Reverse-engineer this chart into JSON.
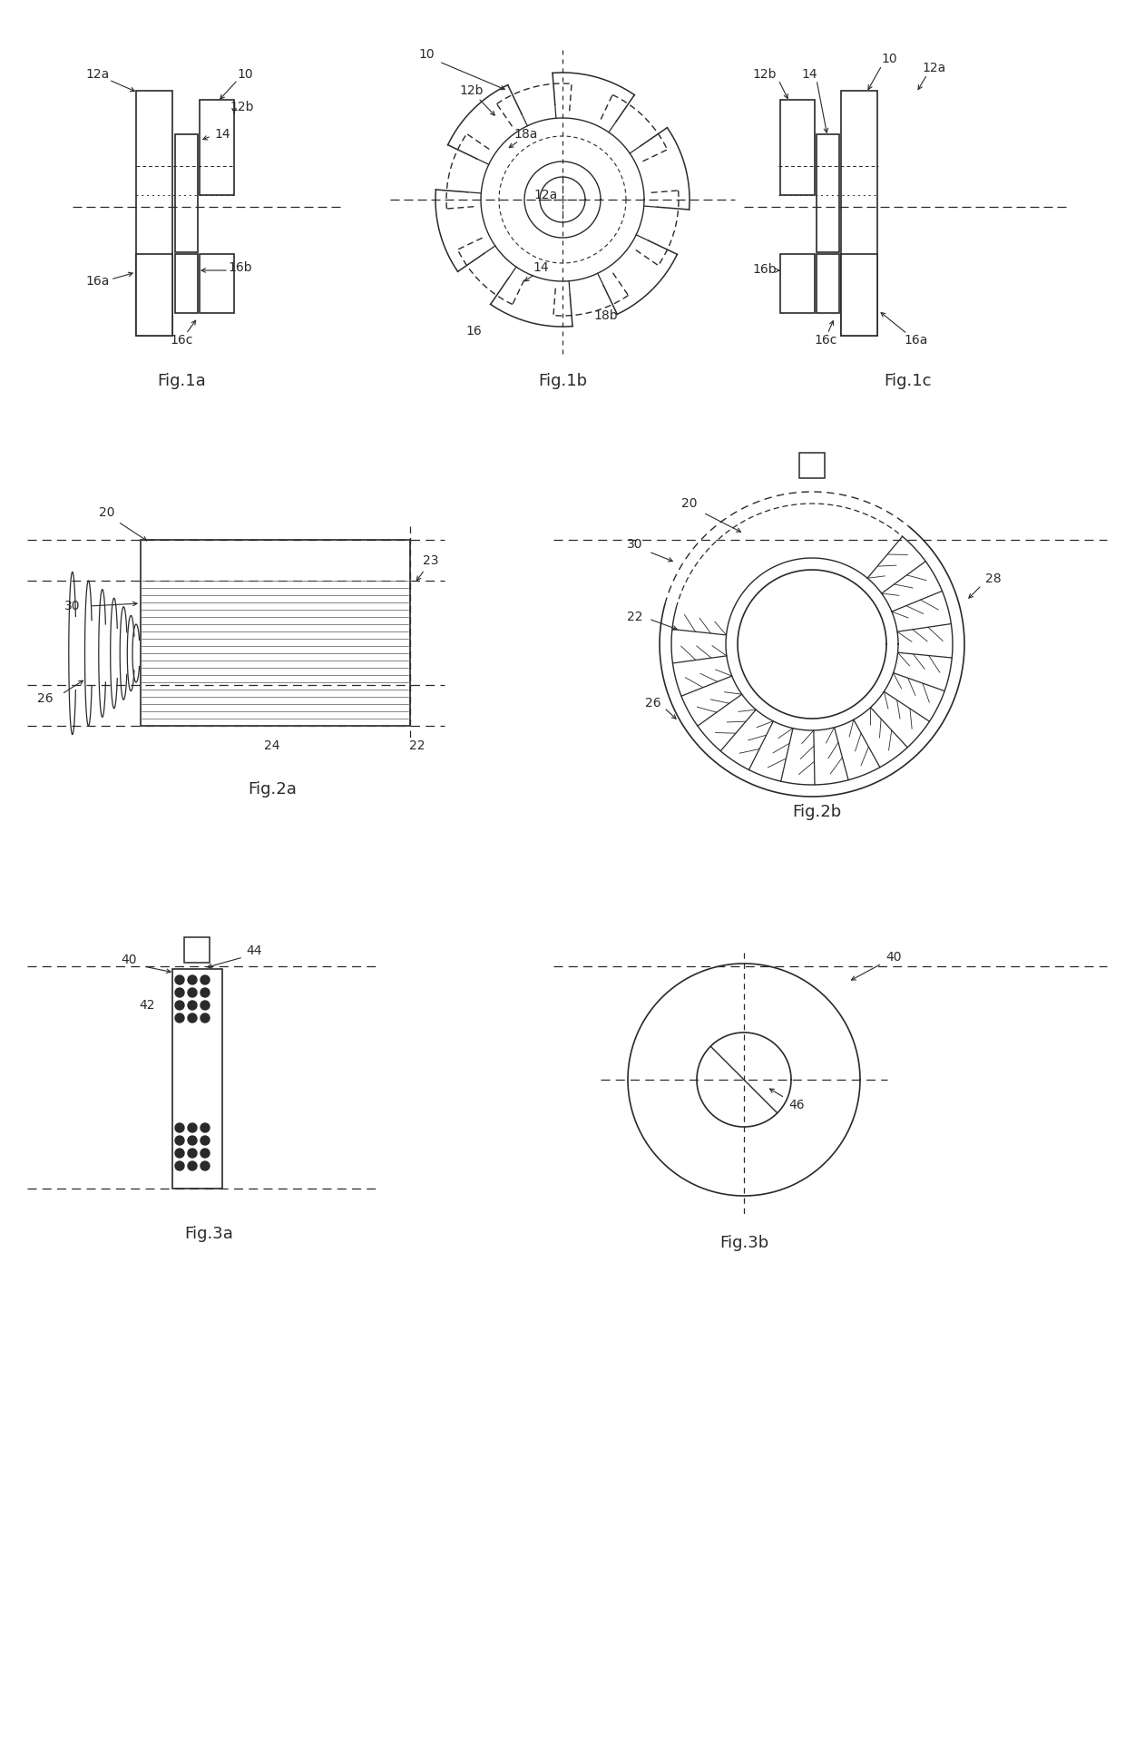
{
  "fig_labels": {
    "fig1a": "Fig.1a",
    "fig1b": "Fig.1b",
    "fig1c": "Fig.1c",
    "fig2a": "Fig.2a",
    "fig2b": "Fig.2b",
    "fig3a": "Fig.3a",
    "fig3b": "Fig.3b"
  },
  "line_color": "#2a2a2a",
  "bg_color": "#ffffff",
  "font_size_label": 13,
  "font_size_ref": 10
}
